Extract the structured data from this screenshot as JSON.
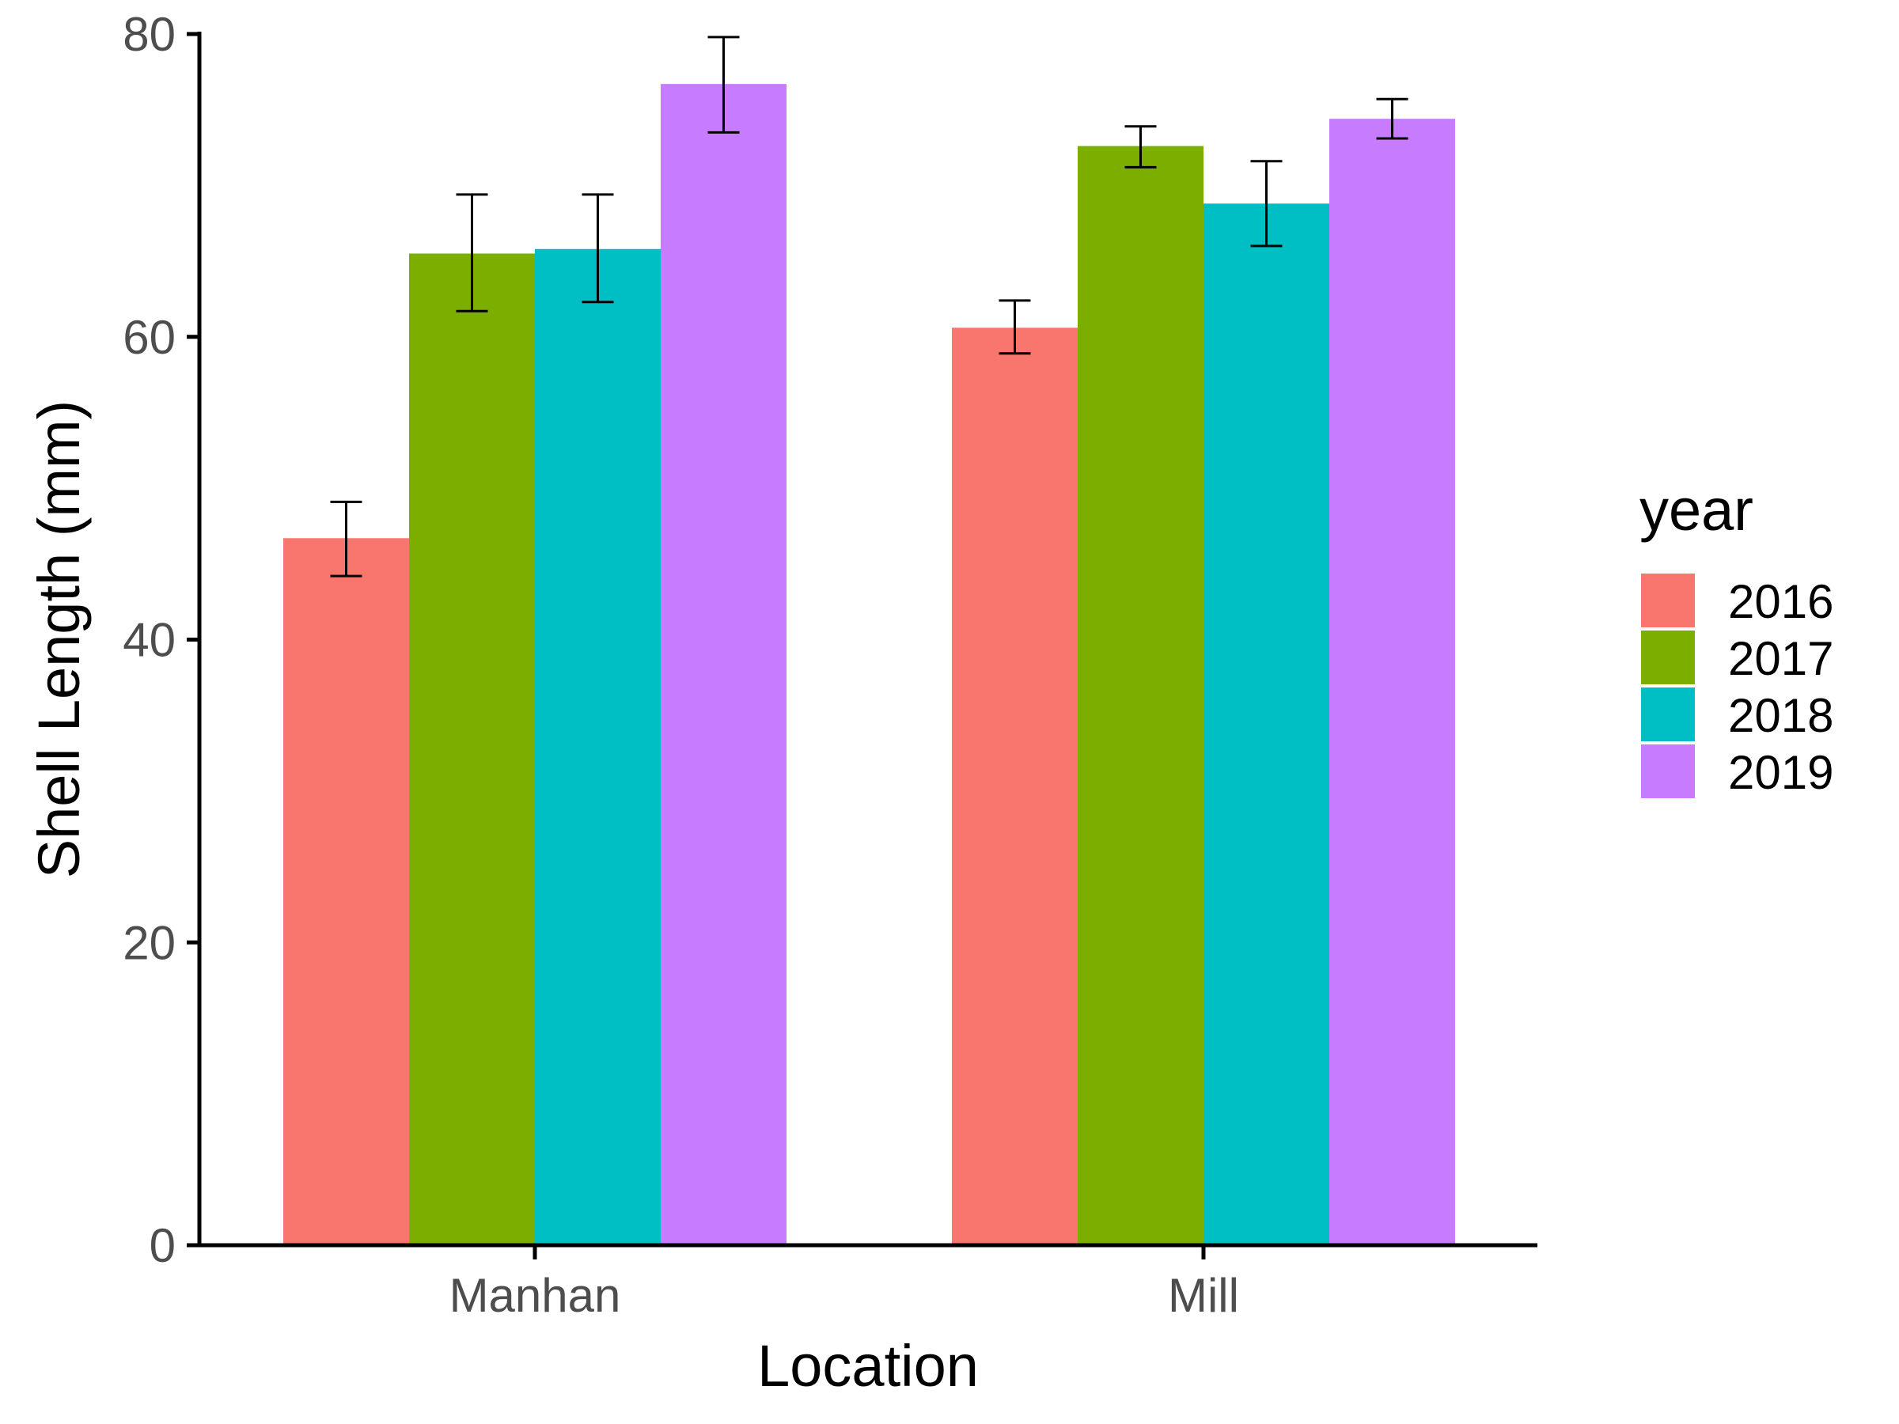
{
  "chart_data": {
    "type": "bar",
    "title": "",
    "xlabel": "Location",
    "ylabel": "Shell Length (mm)",
    "ylim": [
      0,
      80
    ],
    "yticks": [
      "0",
      "20",
      "40",
      "60",
      "80"
    ],
    "categories": [
      "Manhan",
      "Mill"
    ],
    "legend": {
      "title": "year",
      "placement": "right"
    },
    "grid": false,
    "series": [
      {
        "name": "2016",
        "color": "#F8766D",
        "values": [
          46.7,
          60.6
        ],
        "err_low": [
          44.2,
          58.9
        ],
        "err_high": [
          49.1,
          62.4
        ]
      },
      {
        "name": "2017",
        "color": "#7CAE00",
        "values": [
          65.5,
          72.6
        ],
        "err_low": [
          61.7,
          71.2
        ],
        "err_high": [
          69.4,
          73.9
        ]
      },
      {
        "name": "2018",
        "color": "#00BFC4",
        "values": [
          65.8,
          68.8
        ],
        "err_low": [
          62.3,
          66.0
        ],
        "err_high": [
          69.4,
          71.6
        ]
      },
      {
        "name": "2019",
        "color": "#C77CFF",
        "values": [
          76.7,
          74.4
        ],
        "err_low": [
          73.5,
          73.1
        ],
        "err_high": [
          79.8,
          75.7
        ]
      }
    ]
  }
}
